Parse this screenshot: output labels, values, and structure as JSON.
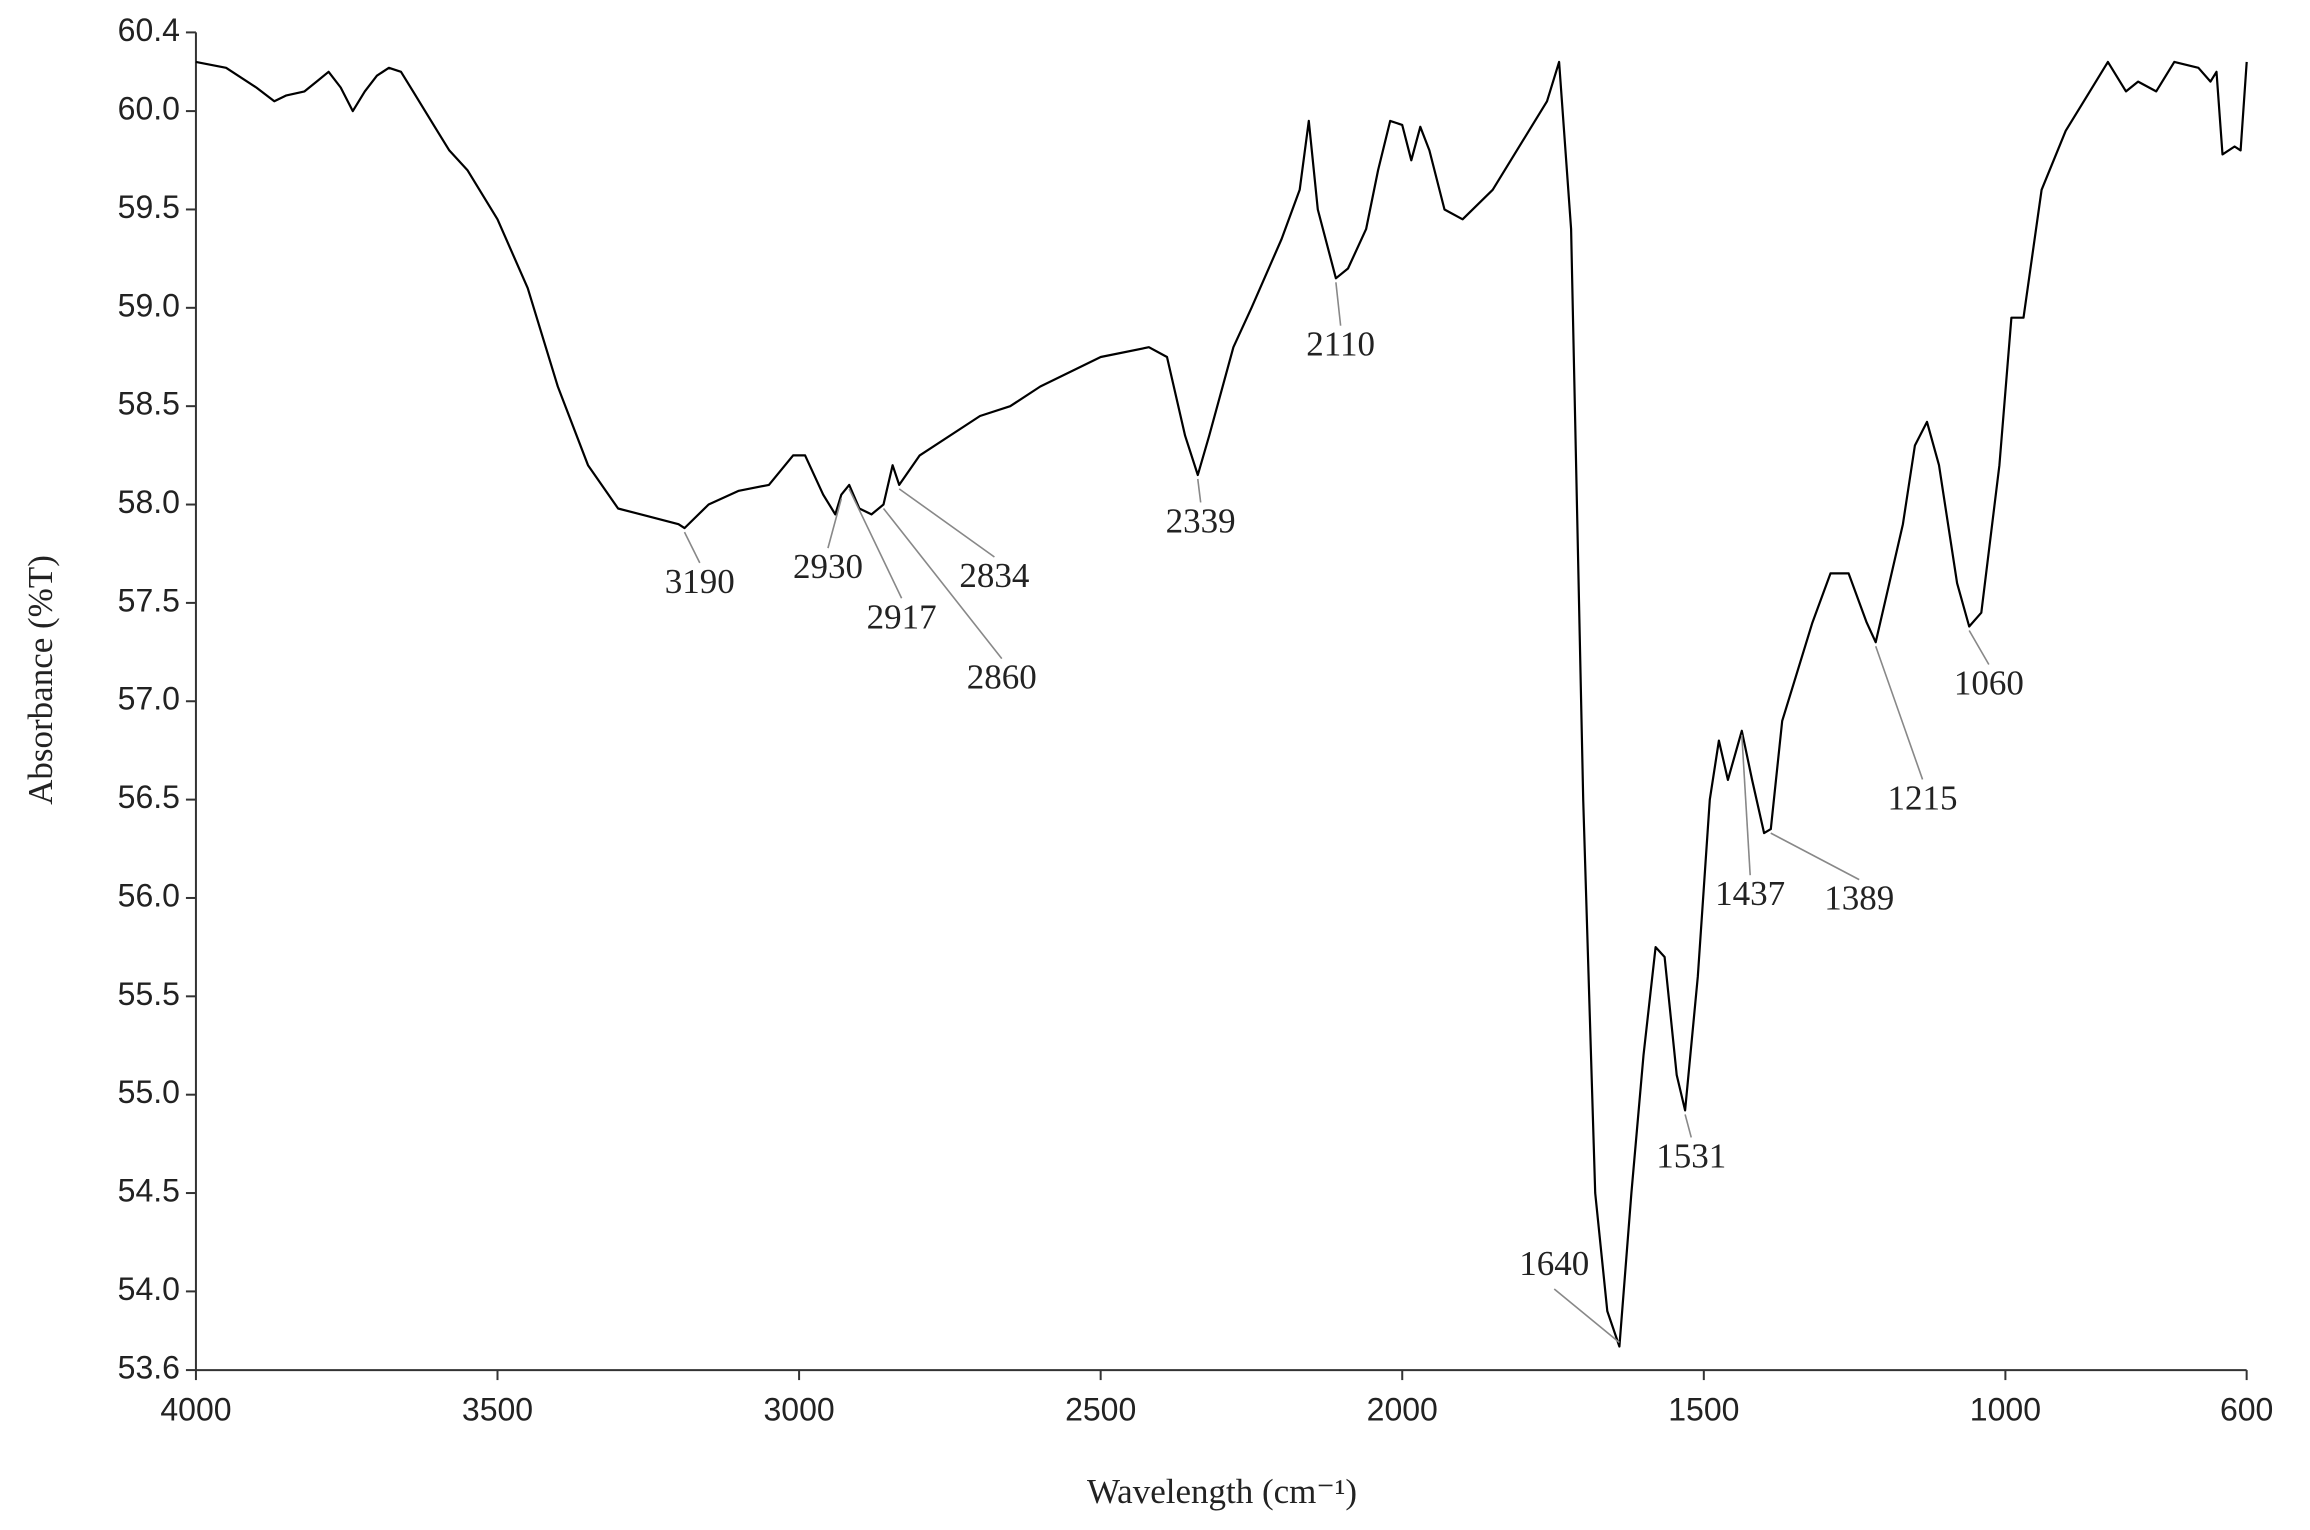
{
  "chart_data": {
    "type": "line",
    "xlabel": "Wavelength (cm⁻¹)",
    "ylabel": "Absorbance (%T)",
    "color": "#000000",
    "xlim": [
      4000,
      600
    ],
    "xticks": [
      4000,
      3500,
      3000,
      2500,
      2000,
      1500,
      1000,
      600
    ],
    "ylim": [
      53.6,
      60.4
    ],
    "yticks": [
      53.6,
      {
        "value": 54,
        "label": "54.0"
      },
      54.5,
      {
        "value": 55,
        "label": "55.0"
      },
      55.5,
      {
        "value": 56,
        "label": "56.0"
      },
      56.5,
      {
        "value": 57,
        "label": "57.0"
      },
      57.5,
      {
        "value": 58,
        "label": "58.0"
      },
      58.5,
      {
        "value": 59,
        "label": "59.0"
      },
      59.5,
      {
        "value": 60,
        "label": "60.0"
      },
      60.4
    ],
    "x": [
      4000,
      3950,
      3900,
      3870,
      3850,
      3820,
      3800,
      3780,
      3760,
      3740,
      3720,
      3700,
      3680,
      3660,
      3640,
      3620,
      3600,
      3580,
      3550,
      3500,
      3450,
      3400,
      3350,
      3300,
      3250,
      3200,
      3190,
      3150,
      3100,
      3050,
      3010,
      2990,
      2960,
      2940,
      2930,
      2917,
      2900,
      2880,
      2860,
      2845,
      2834,
      2800,
      2700,
      2650,
      2600,
      2500,
      2420,
      2390,
      2360,
      2339,
      2320,
      2280,
      2250,
      2200,
      2170,
      2155,
      2140,
      2110,
      2090,
      2060,
      2040,
      2020,
      2000,
      1985,
      1970,
      1955,
      1930,
      1900,
      1850,
      1800,
      1760,
      1740,
      1720,
      1700,
      1680,
      1660,
      1640,
      1620,
      1600,
      1580,
      1565,
      1545,
      1531,
      1510,
      1490,
      1475,
      1460,
      1437,
      1420,
      1400,
      1389,
      1370,
      1350,
      1320,
      1290,
      1260,
      1230,
      1215,
      1200,
      1170,
      1150,
      1130,
      1110,
      1080,
      1060,
      1040,
      1010,
      990,
      970,
      940,
      900,
      870,
      830,
      800,
      780,
      750,
      720,
      680,
      660,
      650,
      640,
      620,
      610,
      600
    ],
    "values": [
      60.25,
      60.22,
      60.12,
      60.05,
      60.08,
      60.1,
      60.15,
      60.2,
      60.12,
      60.0,
      60.1,
      60.18,
      60.22,
      60.2,
      60.1,
      60.0,
      59.9,
      59.8,
      59.7,
      59.45,
      59.1,
      58.6,
      58.2,
      57.98,
      57.94,
      57.9,
      57.88,
      58.0,
      58.07,
      58.1,
      58.25,
      58.25,
      58.05,
      57.95,
      58.05,
      58.1,
      57.98,
      57.95,
      58.0,
      58.2,
      58.1,
      58.25,
      58.45,
      58.5,
      58.6,
      58.75,
      58.8,
      58.75,
      58.35,
      58.15,
      58.35,
      58.8,
      59.0,
      59.35,
      59.6,
      59.95,
      59.5,
      59.15,
      59.2,
      59.4,
      59.7,
      59.95,
      59.93,
      59.75,
      59.92,
      59.8,
      59.5,
      59.45,
      59.6,
      59.85,
      60.05,
      60.25,
      59.4,
      56.5,
      54.5,
      53.9,
      53.72,
      54.5,
      55.2,
      55.75,
      55.7,
      55.1,
      54.92,
      55.6,
      56.5,
      56.8,
      56.6,
      56.85,
      56.6,
      56.33,
      56.35,
      56.9,
      57.1,
      57.4,
      57.65,
      57.65,
      57.4,
      57.3,
      57.5,
      57.9,
      58.3,
      58.42,
      58.2,
      57.6,
      57.38,
      57.45,
      58.2,
      58.95,
      58.95,
      59.6,
      59.9,
      60.05,
      60.25,
      60.1,
      60.15,
      60.1,
      60.25,
      60.22,
      60.15,
      60.2,
      59.78,
      59.82,
      59.8,
      60.25
    ],
    "annotations": [
      {
        "x": 3190,
        "y": 57.88
      },
      {
        "x": 2930,
        "y": 58.05
      },
      {
        "x": 2917,
        "y": 58.1
      },
      {
        "x": 2860,
        "y": 58.0
      },
      {
        "x": 2834,
        "y": 58.1
      },
      {
        "x": 2339,
        "y": 58.15
      },
      {
        "x": 2110,
        "y": 59.15
      },
      {
        "x": 1640,
        "y": 53.72
      },
      {
        "x": 1531,
        "y": 54.92
      },
      {
        "x": 1437,
        "y": 56.85
      },
      {
        "x": 1389,
        "y": 56.35
      },
      {
        "x": 1215,
        "y": 57.3
      },
      {
        "x": 1060,
        "y": 57.38
      }
    ]
  }
}
